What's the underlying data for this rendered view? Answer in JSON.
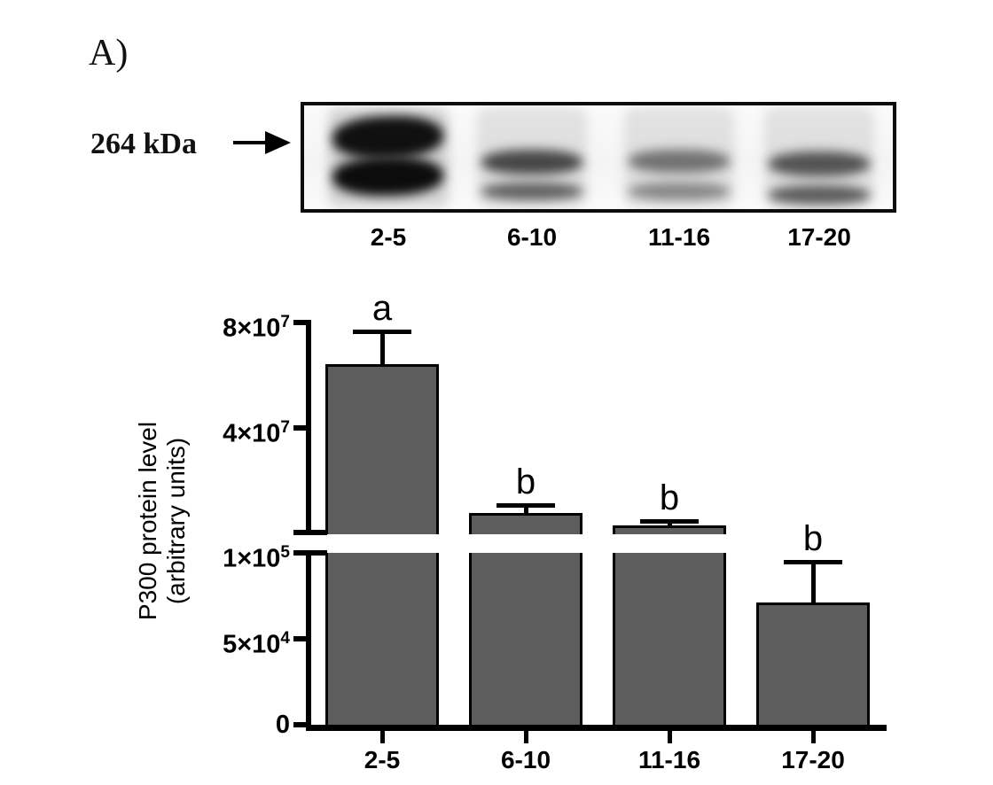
{
  "panel": {
    "label": "A)"
  },
  "blot": {
    "weight_label": "264 kDa",
    "lane_labels": [
      "2-5",
      "6-10",
      "11-16",
      "17-20"
    ],
    "lanes": [
      {
        "label": "2-5",
        "intensity": "very-strong"
      },
      {
        "label": "6-10",
        "intensity": "medium"
      },
      {
        "label": "11-16",
        "intensity": "light"
      },
      {
        "label": "17-20",
        "intensity": "medium-light"
      }
    ]
  },
  "chart_data": {
    "type": "bar",
    "title": "",
    "xlabel": "",
    "ylabel": "P300 protein level (arbitrary units)",
    "ylabel_lines": [
      "P300 protein level",
      "(arbitrary units)"
    ],
    "categories": [
      "2-5",
      "6-10",
      "11-16",
      "17-20"
    ],
    "values": [
      64000000,
      7800000,
      2800000,
      71000
    ],
    "errors": [
      12500000,
      3000000,
      2000000,
      24000
    ],
    "sig_letters": [
      "a",
      "b",
      "b",
      "b"
    ],
    "bar_color": "#5d5d5d",
    "grid": false,
    "legend": false,
    "axis_break": true,
    "upper_axis": {
      "range": [
        100000,
        80000000
      ],
      "ticks": [
        {
          "base": "8×10",
          "exp": "7",
          "value": 80000000
        },
        {
          "base": "4×10",
          "exp": "7",
          "value": 40000000
        }
      ]
    },
    "lower_axis": {
      "range": [
        0,
        100000
      ],
      "ticks": [
        {
          "base": "1×10",
          "exp": "5",
          "value": 100000
        },
        {
          "base": "5×10",
          "exp": "4",
          "value": 50000
        },
        {
          "base": "0",
          "exp": "",
          "value": 0
        }
      ]
    }
  }
}
